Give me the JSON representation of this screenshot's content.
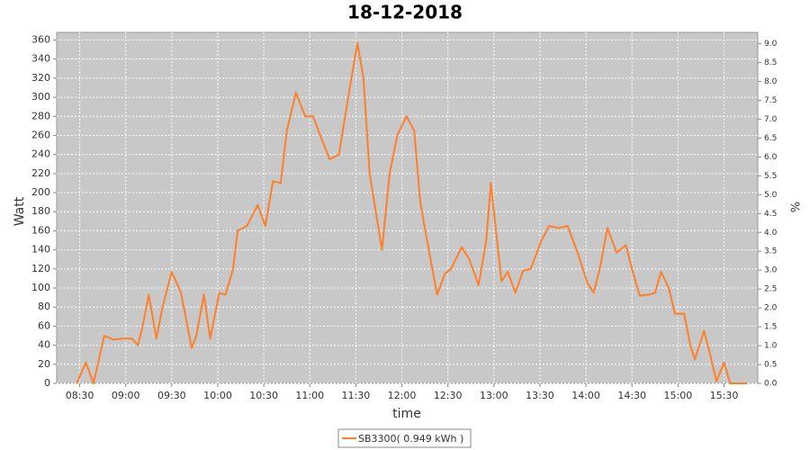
{
  "chart_data": {
    "type": "line",
    "title": "18-12-2018",
    "x_label": "time",
    "y_label": "Watt",
    "y2_label": "%",
    "x": [
      "08:28",
      "08:34",
      "08:39",
      "08:46",
      "08:52",
      "08:58",
      "09:04",
      "09:08",
      "09:11",
      "09:15",
      "09:20",
      "09:24",
      "09:30",
      "09:36",
      "09:43",
      "09:46",
      "09:51",
      "09:55",
      "10:01",
      "10:05",
      "10:10",
      "10:13",
      "10:19",
      "10:26",
      "10:31",
      "10:36",
      "10:41",
      "10:45",
      "10:51",
      "10:57",
      "11:02",
      "11:08",
      "11:13",
      "11:19",
      "11:25",
      "11:31",
      "11:35",
      "11:39",
      "11:47",
      "11:52",
      "11:57",
      "12:03",
      "12:08",
      "12:12",
      "12:17",
      "12:23",
      "12:28",
      "12:32",
      "12:39",
      "12:44",
      "12:50",
      "12:55",
      "12:58",
      "13:02",
      "13:05",
      "13:09",
      "13:14",
      "13:19",
      "13:24",
      "13:31",
      "13:36",
      "13:42",
      "13:48",
      "13:55",
      "14:01",
      "14:05",
      "14:09",
      "14:14",
      "14:20",
      "14:26",
      "14:30",
      "14:35",
      "14:41",
      "14:45",
      "14:49",
      "14:54",
      "14:58",
      "15:04",
      "15:08",
      "15:11",
      "15:17",
      "15:21",
      "15:25",
      "15:30",
      "15:34",
      "15:41",
      "15:45"
    ],
    "series": [
      {
        "name": "SB3300( 0.949 kWh )",
        "color": "#ff7f2a",
        "values": [
          0,
          22,
          0,
          50,
          46,
          47,
          47,
          40,
          60,
          93,
          47,
          80,
          117,
          95,
          37,
          50,
          93,
          47,
          95,
          93,
          120,
          160,
          165,
          187,
          165,
          212,
          210,
          265,
          305,
          280,
          280,
          255,
          235,
          240,
          300,
          357,
          320,
          220,
          140,
          220,
          260,
          280,
          265,
          190,
          145,
          93,
          115,
          120,
          143,
          130,
          103,
          150,
          210,
          150,
          107,
          117,
          95,
          118,
          120,
          150,
          165,
          163,
          165,
          135,
          105,
          95,
          120,
          163,
          137,
          145,
          120,
          92,
          93,
          95,
          117,
          100,
          73,
          73,
          40,
          25,
          55,
          30,
          2,
          22,
          0,
          0,
          0
        ]
      }
    ],
    "xlim": [
      "08:15",
      "15:52"
    ],
    "xticks": [
      "08:30",
      "09:00",
      "09:30",
      "10:00",
      "10:30",
      "11:00",
      "11:30",
      "12:00",
      "12:30",
      "13:00",
      "13:30",
      "14:00",
      "14:30",
      "15:00",
      "15:30"
    ],
    "ylim": [
      0,
      368
    ],
    "yticks": [
      0,
      20,
      40,
      60,
      80,
      100,
      120,
      140,
      160,
      180,
      200,
      220,
      240,
      260,
      280,
      300,
      320,
      340,
      360
    ],
    "y2lim": [
      0,
      9.3
    ],
    "y2ticks": [
      {
        "value": 0,
        "label": "0.0"
      },
      0.5,
      {
        "value": 1,
        "label": "1.0"
      },
      1.5,
      {
        "value": 2,
        "label": "2.0"
      },
      2.5,
      {
        "value": 3,
        "label": "3.0"
      },
      3.5,
      {
        "value": 4,
        "label": "4.0"
      },
      4.5,
      {
        "value": 5,
        "label": "5.0"
      },
      5.5,
      {
        "value": 6,
        "label": "6.0"
      },
      6.5,
      {
        "value": 7,
        "label": "7.0"
      },
      7.5,
      {
        "value": 8,
        "label": "8.0"
      },
      8.5,
      {
        "value": 9,
        "label": "9.0"
      }
    ],
    "grid": true
  }
}
